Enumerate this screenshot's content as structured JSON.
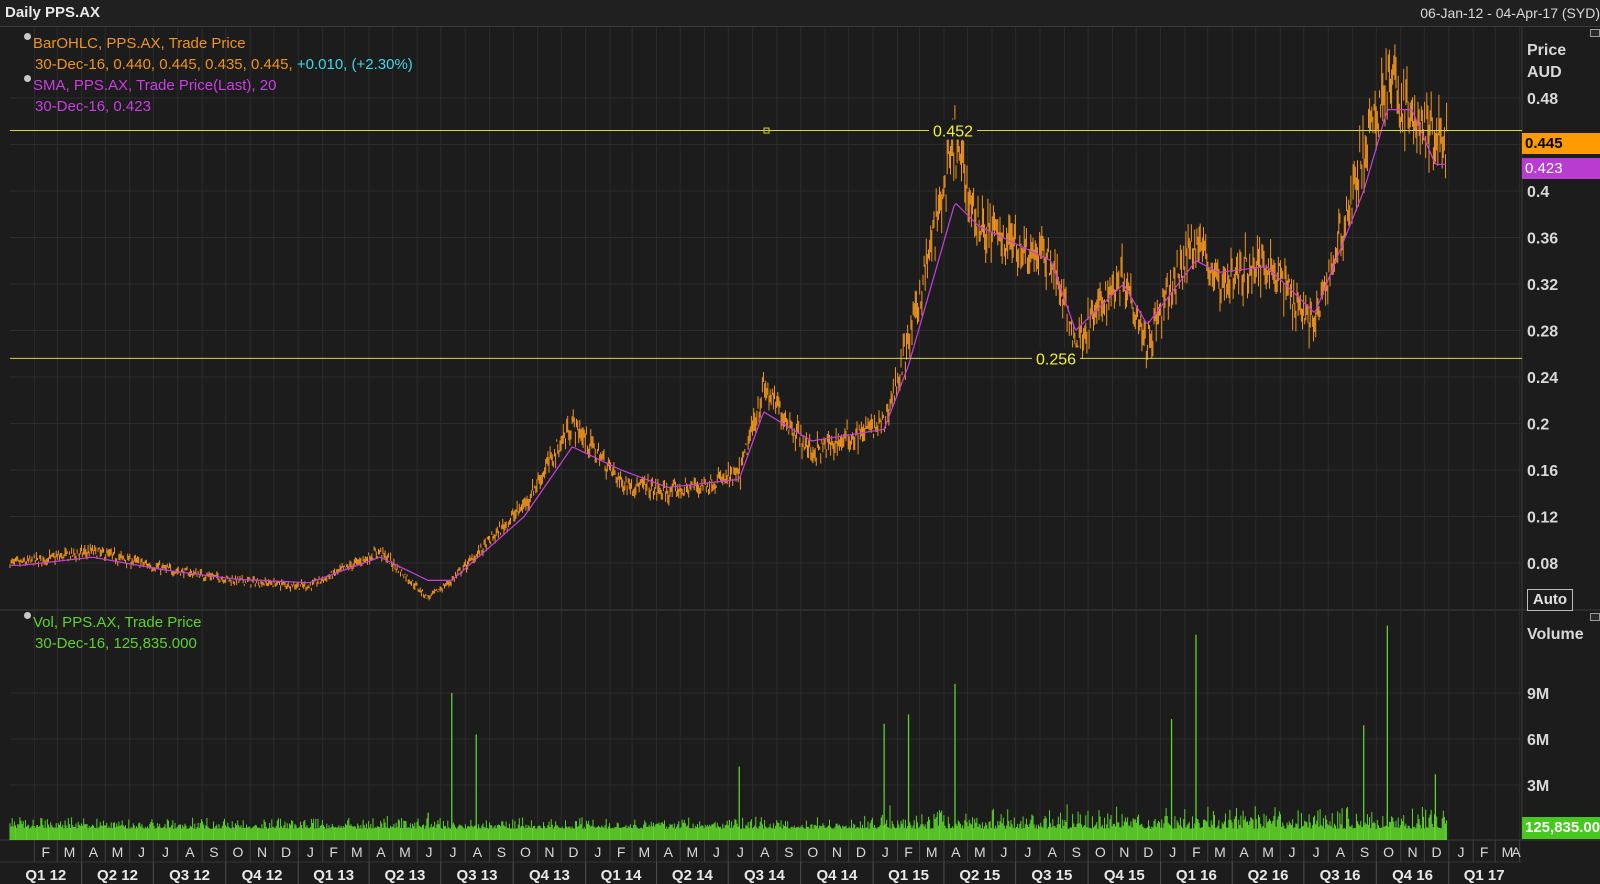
{
  "window": {
    "title": "Daily PPS.AX",
    "date_range": "06-Jan-12 - 04-Apr-17 (SYD)"
  },
  "price_panel": {
    "legend": {
      "ohlc_name": "BarOHLC, PPS.AX, Trade Price",
      "ohlc_values": "30-Dec-16, 0.440, 0.445, 0.435, 0.445,",
      "ohlc_change": "+0.010, (+2.30%)",
      "sma_name": "SMA, PPS.AX, Trade Price(Last),  20",
      "sma_value": "30-Dec-16, 0.423"
    },
    "axis_title": "Price",
    "axis_unit": "AUD",
    "last_price_badge": "0.445",
    "sma_badge": "0.423",
    "auto_button": "Auto"
  },
  "volume_panel": {
    "legend": {
      "name": "Vol, PPS.AX, Trade Price",
      "value": "30-Dec-16, 125,835.000"
    },
    "axis_title": "Volume",
    "last_volume_badge": "125,835.000"
  },
  "colors": {
    "background": "#1c1c1c",
    "grid": "#2c2c2c",
    "price_bars": "#f0941e",
    "sma_line": "#c840e0",
    "hline": "#d8d83a",
    "volume": "#5fd22a",
    "last_badge_bg": "#ff9a00",
    "sma_badge_bg": "#b83cd0",
    "volume_badge_bg": "#46c81e"
  },
  "chart_data": [
    {
      "type": "line",
      "title": "Daily PPS.AX",
      "subtitle": "BarOHLC, PPS.AX, Trade Price; SMA 20",
      "ylabel": "Price AUD",
      "ylim": [
        0.04,
        0.52
      ],
      "y_ticks": [
        "0.48",
        "0.44",
        "0.4",
        "0.36",
        "0.32",
        "0.28",
        "0.24",
        "0.2",
        "0.16",
        "0.12",
        "0.08"
      ],
      "x": [
        "Jan-12",
        "Apr-12",
        "Jul-12",
        "Oct-12",
        "Jan-13",
        "Apr-13",
        "Jun-13",
        "Jul-13",
        "Oct-13",
        "Dec-13",
        "Feb-14",
        "Apr-14",
        "Jul-14",
        "Aug-14",
        "Oct-14",
        "Jan-15",
        "Feb-15",
        "Apr-15",
        "May-15",
        "Aug-15",
        "Sep-15",
        "Nov-15",
        "Dec-15",
        "Feb-16",
        "Mar-16",
        "May-16",
        "Jul-16",
        "Sep-16",
        "Oct-16",
        "Nov-16",
        "Dec-16"
      ],
      "series": [
        {
          "values": [
            0.08,
            0.09,
            0.075,
            0.065,
            0.06,
            0.09,
            0.05,
            0.065,
            0.13,
            0.2,
            0.15,
            0.14,
            0.155,
            0.23,
            0.175,
            0.2,
            0.27,
            0.44,
            0.37,
            0.34,
            0.27,
            0.33,
            0.27,
            0.36,
            0.32,
            0.34,
            0.285,
            0.43,
            0.5,
            0.46,
            0.445
          ]
        },
        {
          "values": [
            0.078,
            0.085,
            0.074,
            0.066,
            0.063,
            0.085,
            0.065,
            0.065,
            0.12,
            0.18,
            0.16,
            0.145,
            0.152,
            0.21,
            0.185,
            0.195,
            0.25,
            0.39,
            0.37,
            0.34,
            0.28,
            0.32,
            0.285,
            0.34,
            0.33,
            0.335,
            0.295,
            0.4,
            0.47,
            0.47,
            0.423
          ]
        }
      ],
      "hlines": [
        {
          "value": 0.452,
          "label": "0.452"
        },
        {
          "value": 0.256,
          "label": "0.256"
        }
      ],
      "last_value": 0.445,
      "sma_last_value": 0.423,
      "months": [
        "F",
        "M",
        "A",
        "M",
        "J",
        "J",
        "A",
        "S",
        "O",
        "N",
        "D",
        "J",
        "F",
        "M",
        "A",
        "M",
        "J",
        "J",
        "A",
        "S",
        "O",
        "N",
        "D",
        "J",
        "F",
        "M",
        "A",
        "M",
        "J",
        "J",
        "A",
        "S",
        "O",
        "N",
        "D",
        "J",
        "F",
        "M",
        "A",
        "M",
        "J",
        "J",
        "A",
        "S",
        "O",
        "N",
        "D",
        "J",
        "F",
        "M",
        "A",
        "M",
        "J",
        "J",
        "A",
        "S",
        "O",
        "N",
        "D",
        "J",
        "F",
        "M",
        "A",
        "M",
        "J",
        "J",
        "A",
        "S",
        "O",
        "N",
        "D",
        "J",
        "F",
        "M",
        "A"
      ],
      "quarters": [
        "Q1 12",
        "Q2 12",
        "Q3 12",
        "Q4 12",
        "Q1 13",
        "Q2 13",
        "Q3 13",
        "Q4 13",
        "Q1 14",
        "Q2 14",
        "Q3 14",
        "Q4 14",
        "Q1 15",
        "Q2 15",
        "Q3 15",
        "Q4 15",
        "Q1 16",
        "Q2 16",
        "Q3 16",
        "Q4 16",
        "Q1 17"
      ],
      "grid": true
    },
    {
      "type": "bar",
      "title": "Vol, PPS.AX, Trade Price",
      "ylabel": "Volume",
      "ylim": [
        0,
        12000000
      ],
      "y_ticks": [
        "9M",
        "6M",
        "3M"
      ],
      "x": [
        "Jun-13",
        "Jul-13",
        "Aug-13",
        "Jul-14",
        "Jan-15",
        "Feb-15",
        "Apr-15",
        "Jan-16",
        "Feb-16",
        "Sep-16",
        "Oct-16",
        "Dec-16"
      ],
      "values": [
        1200000,
        9000000,
        6300000,
        4200000,
        7000000,
        7600000,
        9600000,
        7300000,
        12800000,
        6900000,
        13400000,
        3700000
      ],
      "last_value": 125835,
      "grid": true
    }
  ]
}
